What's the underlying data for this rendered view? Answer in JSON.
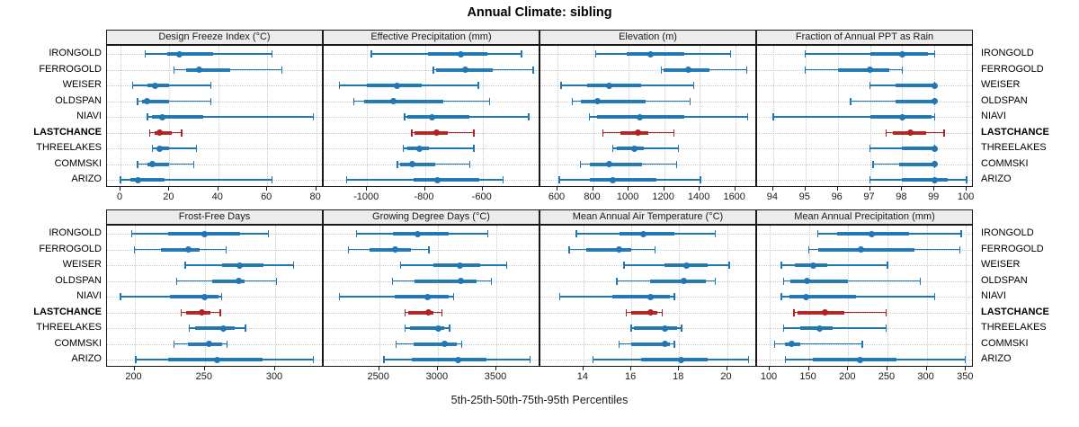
{
  "title": "Annual Climate: sibling",
  "caption": "5th-25th-50th-75th-95th Percentiles",
  "colors": {
    "series": "#1f77b4",
    "highlight": "#b22222",
    "grid": "#c9c9c9",
    "strip_bg": "#ececec",
    "border": "#1a1a1a"
  },
  "sites": [
    "IRONGOLD",
    "FERROGOLD",
    "WEISER",
    "OLDSPAN",
    "NIAVI",
    "LASTCHANCE",
    "THREELAKES",
    "COMMSKI",
    "ARIZO"
  ],
  "highlight_site": "LASTCHANCE",
  "percentiles": [
    5,
    25,
    50,
    75,
    95
  ],
  "chart_data": [
    {
      "type": "interval",
      "row": 0,
      "col": 0,
      "title": "Design Freeze Index (°C)",
      "xlim": [
        -5.5,
        83.1
      ],
      "ticks": [
        0,
        20,
        40,
        60,
        80
      ],
      "series": [
        {
          "name": "IRONGOLD",
          "values": [
            10,
            19,
            24,
            38,
            62
          ]
        },
        {
          "name": "FERROGOLD",
          "values": [
            22,
            27,
            32,
            45,
            66
          ]
        },
        {
          "name": "WEISER",
          "values": [
            5,
            11,
            14,
            20,
            37
          ]
        },
        {
          "name": "OLDSPAN",
          "values": [
            7,
            9,
            11,
            20,
            37
          ]
        },
        {
          "name": "NIAVI",
          "values": [
            11,
            13,
            17,
            34,
            79
          ]
        },
        {
          "name": "LASTCHANCE",
          "values": [
            12,
            14,
            16,
            21,
            25
          ]
        },
        {
          "name": "THREELAKES",
          "values": [
            13,
            15,
            16,
            20,
            31
          ]
        },
        {
          "name": "COMMSKI",
          "values": [
            7,
            11,
            13,
            20,
            30
          ]
        },
        {
          "name": "ARIZO",
          "values": [
            0,
            4,
            7,
            18,
            62
          ]
        }
      ]
    },
    {
      "type": "interval",
      "row": 0,
      "col": 1,
      "title": "Effective Precipitation (mm)",
      "xlim": [
        -1150,
        -400
      ],
      "ticks": [
        -1000,
        -800,
        -600
      ],
      "series": [
        {
          "name": "IRONGOLD",
          "values": [
            -985,
            -790,
            -675,
            -585,
            -465
          ]
        },
        {
          "name": "FERROGOLD",
          "values": [
            -770,
            -760,
            -660,
            -565,
            -425
          ]
        },
        {
          "name": "WEISER",
          "values": [
            -1095,
            -1000,
            -895,
            -810,
            -615
          ]
        },
        {
          "name": "OLDSPAN",
          "values": [
            -1045,
            -1010,
            -910,
            -735,
            -575
          ]
        },
        {
          "name": "NIAVI",
          "values": [
            -870,
            -860,
            -775,
            -645,
            -440
          ]
        },
        {
          "name": "LASTCHANCE",
          "values": [
            -845,
            -835,
            -760,
            -720,
            -630
          ]
        },
        {
          "name": "THREELAKES",
          "values": [
            -875,
            -860,
            -820,
            -785,
            -630
          ]
        },
        {
          "name": "COMMSKI",
          "values": [
            -895,
            -885,
            -845,
            -765,
            -645
          ]
        },
        {
          "name": "ARIZO",
          "values": [
            -1070,
            -840,
            -755,
            -610,
            -530
          ]
        }
      ]
    },
    {
      "type": "interval",
      "row": 0,
      "col": 2,
      "title": "Elevation (m)",
      "xlim": [
        504,
        1723
      ],
      "ticks": [
        600,
        800,
        1000,
        1200,
        1400,
        1600
      ],
      "series": [
        {
          "name": "IRONGOLD",
          "values": [
            815,
            990,
            1125,
            1315,
            1575
          ]
        },
        {
          "name": "FERROGOLD",
          "values": [
            1185,
            1195,
            1335,
            1455,
            1665
          ]
        },
        {
          "name": "WEISER",
          "values": [
            620,
            765,
            890,
            1070,
            1365
          ]
        },
        {
          "name": "OLDSPAN",
          "values": [
            685,
            730,
            825,
            1095,
            1345
          ]
        },
        {
          "name": "NIAVI",
          "values": [
            780,
            820,
            1065,
            1315,
            1670
          ]
        },
        {
          "name": "LASTCHANCE",
          "values": [
            855,
            955,
            1055,
            1110,
            1255
          ]
        },
        {
          "name": "THREELAKES",
          "values": [
            910,
            935,
            1030,
            1085,
            1280
          ]
        },
        {
          "name": "COMMSKI",
          "values": [
            730,
            780,
            890,
            1075,
            1270
          ]
        },
        {
          "name": "ARIZO",
          "values": [
            610,
            780,
            910,
            1155,
            1405
          ]
        }
      ]
    },
    {
      "type": "interval",
      "row": 0,
      "col": 3,
      "title": "Fraction of Annual PPT as Rain",
      "xlim": [
        93.5,
        100.22
      ],
      "ticks": [
        94,
        95,
        96,
        97,
        98,
        99,
        100
      ],
      "series": [
        {
          "name": "IRONGOLD",
          "values": [
            95,
            97,
            98,
            98.8,
            99
          ]
        },
        {
          "name": "FERROGOLD",
          "values": [
            95,
            96,
            97,
            97.6,
            98
          ]
        },
        {
          "name": "WEISER",
          "values": [
            97,
            97.8,
            99,
            99,
            99
          ]
        },
        {
          "name": "OLDSPAN",
          "values": [
            96.4,
            97.8,
            99,
            99,
            99
          ]
        },
        {
          "name": "NIAVI",
          "values": [
            94,
            97,
            98,
            98.9,
            99
          ]
        },
        {
          "name": "LASTCHANCE",
          "values": [
            97.5,
            97.7,
            98.25,
            98.75,
            99.3
          ]
        },
        {
          "name": "THREELAKES",
          "values": [
            97,
            98,
            99,
            99,
            99
          ]
        },
        {
          "name": "COMMSKI",
          "values": [
            97.1,
            97.9,
            99,
            99,
            99
          ]
        },
        {
          "name": "ARIZO",
          "values": [
            97,
            98,
            99,
            99.4,
            100
          ]
        }
      ]
    },
    {
      "type": "interval",
      "row": 1,
      "col": 0,
      "title": "Frost-Free Days",
      "xlim": [
        180.5,
        334.5
      ],
      "ticks": [
        200,
        250,
        300
      ],
      "series": [
        {
          "name": "IRONGOLD",
          "values": [
            198,
            224,
            250,
            275,
            295
          ]
        },
        {
          "name": "FERROGOLD",
          "values": [
            200,
            219,
            238,
            246,
            265
          ]
        },
        {
          "name": "WEISER",
          "values": [
            236,
            262,
            275,
            292,
            313
          ]
        },
        {
          "name": "OLDSPAN",
          "values": [
            230,
            255,
            274,
            278,
            301
          ]
        },
        {
          "name": "NIAVI",
          "values": [
            190,
            225,
            250,
            260,
            262
          ]
        },
        {
          "name": "LASTCHANCE",
          "values": [
            233,
            237,
            248,
            254,
            261
          ]
        },
        {
          "name": "THREELAKES",
          "values": [
            239,
            243,
            263,
            271,
            279
          ]
        },
        {
          "name": "COMMSKI",
          "values": [
            228,
            238,
            253,
            262,
            266
          ]
        },
        {
          "name": "ARIZO",
          "values": [
            201,
            224,
            259,
            291,
            327
          ]
        }
      ]
    },
    {
      "type": "interval",
      "row": 1,
      "col": 1,
      "title": "Growing Degree Days (°C)",
      "xlim": [
        2026,
        3876
      ],
      "ticks": [
        2500,
        3000,
        3500
      ],
      "series": [
        {
          "name": "IRONGOLD",
          "values": [
            2305,
            2620,
            2825,
            3095,
            3425
          ]
        },
        {
          "name": "FERROGOLD",
          "values": [
            2235,
            2420,
            2635,
            2775,
            2925
          ]
        },
        {
          "name": "WEISER",
          "values": [
            2685,
            2965,
            3190,
            3360,
            3590
          ]
        },
        {
          "name": "OLDSPAN",
          "values": [
            2615,
            2800,
            3195,
            3335,
            3460
          ]
        },
        {
          "name": "NIAVI",
          "values": [
            2160,
            2630,
            2915,
            3095,
            3135
          ]
        },
        {
          "name": "LASTCHANCE",
          "values": [
            2720,
            2750,
            2920,
            2965,
            3035
          ]
        },
        {
          "name": "THREELAKES",
          "values": [
            2720,
            2760,
            3005,
            3055,
            3100
          ]
        },
        {
          "name": "COMMSKI",
          "values": [
            2645,
            2790,
            3055,
            3160,
            3205
          ]
        },
        {
          "name": "ARIZO",
          "values": [
            2540,
            2775,
            3170,
            3415,
            3790
          ]
        }
      ]
    },
    {
      "type": "interval",
      "row": 1,
      "col": 2,
      "title": "Mean Annual Air Temperature (°C)",
      "xlim": [
        12.2,
        21.26
      ],
      "ticks": [
        14,
        16,
        18,
        20
      ],
      "series": [
        {
          "name": "IRONGOLD",
          "values": [
            13.7,
            15.5,
            16.5,
            17.8,
            19.5
          ]
        },
        {
          "name": "FERROGOLD",
          "values": [
            13.4,
            14.1,
            15.5,
            16.0,
            17.0
          ]
        },
        {
          "name": "WEISER",
          "values": [
            15.7,
            17.4,
            18.3,
            19.2,
            20.1
          ]
        },
        {
          "name": "OLDSPAN",
          "values": [
            15.4,
            16.8,
            18.2,
            19.1,
            19.5
          ]
        },
        {
          "name": "NIAVI",
          "values": [
            13.0,
            15.2,
            16.8,
            17.6,
            17.8
          ]
        },
        {
          "name": "LASTCHANCE",
          "values": [
            15.8,
            16.0,
            16.8,
            17.1,
            17.3
          ]
        },
        {
          "name": "THREELAKES",
          "values": [
            16.0,
            16.1,
            17.4,
            17.9,
            18.1
          ]
        },
        {
          "name": "COMMSKI",
          "values": [
            15.5,
            16.0,
            17.4,
            17.6,
            17.8
          ]
        },
        {
          "name": "ARIZO",
          "values": [
            14.4,
            16.4,
            18.1,
            19.2,
            20.9
          ]
        }
      ]
    },
    {
      "type": "interval",
      "row": 1,
      "col": 3,
      "title": "Mean Annual Precipitation (mm)",
      "xlim": [
        84,
        360
      ],
      "ticks": [
        100,
        150,
        200,
        250,
        300,
        350
      ],
      "series": [
        {
          "name": "IRONGOLD",
          "values": [
            161,
            186,
            230,
            277,
            344
          ]
        },
        {
          "name": "FERROGOLD",
          "values": [
            150,
            162,
            216,
            285,
            342
          ]
        },
        {
          "name": "WEISER",
          "values": [
            115,
            132,
            155,
            173,
            250
          ]
        },
        {
          "name": "OLDSPAN",
          "values": [
            118,
            126,
            148,
            200,
            292
          ]
        },
        {
          "name": "NIAVI",
          "values": [
            115,
            125,
            146,
            210,
            310
          ]
        },
        {
          "name": "LASTCHANCE",
          "values": [
            131,
            136,
            170,
            195,
            248
          ]
        },
        {
          "name": "THREELAKES",
          "values": [
            118,
            139,
            163,
            180,
            248
          ]
        },
        {
          "name": "COMMSKI",
          "values": [
            106,
            119,
            128,
            139,
            218
          ]
        },
        {
          "name": "ARIZO",
          "values": [
            120,
            155,
            215,
            262,
            349
          ]
        }
      ]
    }
  ]
}
